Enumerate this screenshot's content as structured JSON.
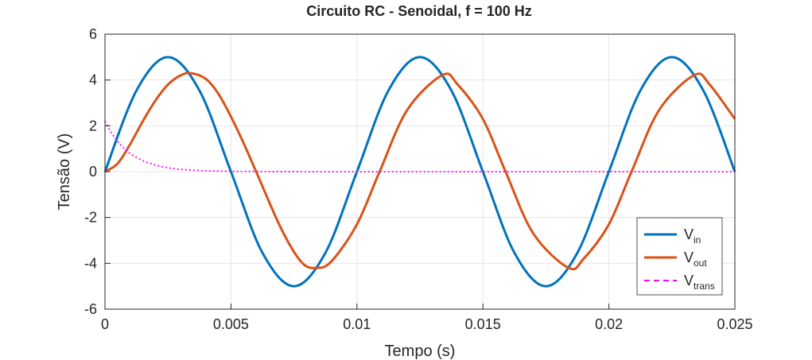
{
  "chart_data": {
    "type": "line",
    "title": "Circuito RC - Senoidal, f = 100 Hz",
    "xlabel": "Tempo (s)",
    "ylabel": "Tensão (V)",
    "xlim": [
      0,
      0.025
    ],
    "ylim": [
      -6,
      6
    ],
    "xticks": [
      0,
      0.005,
      0.01,
      0.015,
      0.02,
      0.025
    ],
    "xtick_labels": [
      "0",
      "0.005",
      "0.01",
      "0.015",
      "0.02",
      "0.025"
    ],
    "yticks": [
      -6,
      -4,
      -2,
      0,
      2,
      4,
      6
    ],
    "ytick_labels": [
      "-6",
      "-4",
      "-2",
      "0",
      "2",
      "4",
      "6"
    ],
    "grid": true,
    "legend_position": "bottom-right",
    "series": [
      {
        "name_base": "V",
        "name_sub": "in",
        "color": "#0072BD",
        "style": "solid",
        "x": [
          0,
          0.00125,
          0.0025,
          0.00375,
          0.005,
          0.00625,
          0.0075,
          0.00875,
          0.01,
          0.01125,
          0.0125,
          0.01375,
          0.015,
          0.01625,
          0.0175,
          0.01875,
          0.02,
          0.02125,
          0.0225,
          0.02375,
          0.025
        ],
        "y": [
          0,
          3.54,
          5,
          3.54,
          0,
          -3.54,
          -5,
          -3.54,
          0,
          3.54,
          5,
          3.54,
          0,
          -3.54,
          -5,
          -3.54,
          0,
          3.54,
          5,
          3.54,
          0
        ]
      },
      {
        "name_base": "V",
        "name_sub": "out",
        "color": "#D95319",
        "style": "solid",
        "x": [
          0,
          0.0005,
          0.001,
          0.0015,
          0.002,
          0.0025,
          0.003,
          0.0034,
          0.004,
          0.0045,
          0.005,
          0.0055,
          0.006,
          0.007,
          0.0078,
          0.0084,
          0.009,
          0.01,
          0.0109,
          0.012,
          0.0134,
          0.014,
          0.015,
          0.0159,
          0.017,
          0.0184,
          0.019,
          0.02,
          0.0209,
          0.022,
          0.0234,
          0.024,
          0.025
        ],
        "y": [
          0,
          0.35,
          1.2,
          2.2,
          3.1,
          3.8,
          4.2,
          4.3,
          4.05,
          3.4,
          2.4,
          1.25,
          0,
          -2.5,
          -3.95,
          -4.2,
          -3.9,
          -2.3,
          0,
          2.7,
          4.22,
          3.8,
          2.3,
          0,
          -2.7,
          -4.2,
          -3.8,
          -2.3,
          0,
          2.7,
          4.22,
          3.8,
          2.3
        ]
      },
      {
        "name_base": "V",
        "name_sub": "trans",
        "color": "#FF00FF",
        "style": "dotted",
        "x": [
          0,
          0.00025,
          0.0005,
          0.00075,
          0.001,
          0.0015,
          0.002,
          0.0025,
          0.003,
          0.004,
          0.005,
          0.006,
          0.008,
          0.01,
          0.015,
          0.02,
          0.025
        ],
        "y": [
          2.2,
          1.7,
          1.32,
          1.02,
          0.79,
          0.48,
          0.29,
          0.17,
          0.1,
          0.04,
          0.015,
          0.005,
          0.001,
          0,
          0,
          0,
          0
        ]
      }
    ]
  }
}
